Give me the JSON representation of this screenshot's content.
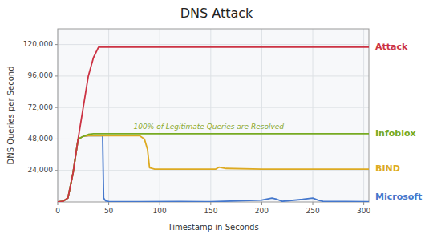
{
  "chart_data": {
    "type": "line",
    "title": "DNS Attack",
    "xlabel": "Timestamp in Seconds",
    "ylabel": "DNS Queries per Second",
    "xlim": [
      0,
      305
    ],
    "ylim": [
      0,
      132000
    ],
    "xticks": [
      0,
      50,
      100,
      150,
      200,
      250,
      300
    ],
    "yticks": [
      {
        "value": 24000,
        "label": "24,000"
      },
      {
        "value": 48000,
        "label": "48,000"
      },
      {
        "value": 72000,
        "label": "72,000"
      },
      {
        "value": 96000,
        "label": "96,000"
      },
      {
        "value": 120000,
        "label": "120,000"
      }
    ],
    "grid": true,
    "legend": "right",
    "annotations": [
      {
        "text": "100% of Legitimate Queries are Resolved",
        "x": 148,
        "y": 54500,
        "color": "#8aaa33"
      }
    ],
    "series": [
      {
        "name": "Microsoft",
        "color": "#4477cc",
        "x": [
          0,
          5,
          10,
          15,
          20,
          25,
          30,
          40,
          44,
          45,
          47,
          50,
          80,
          120,
          150,
          200,
          210,
          215,
          220,
          240,
          250,
          255,
          260,
          305
        ],
        "values": [
          0,
          500,
          3000,
          22000,
          48000,
          50000,
          50500,
          50500,
          50500,
          3000,
          800,
          400,
          200,
          300,
          200,
          1500,
          3000,
          2000,
          500,
          2000,
          3000,
          1500,
          500,
          200
        ]
      },
      {
        "name": "BIND",
        "color": "#ddaa22",
        "x": [
          0,
          5,
          10,
          15,
          20,
          25,
          30,
          40,
          80,
          85,
          88,
          90,
          95,
          155,
          158,
          165,
          200,
          305
        ],
        "values": [
          0,
          500,
          3000,
          22000,
          48000,
          50000,
          50500,
          50500,
          50500,
          48000,
          40000,
          26000,
          25000,
          25000,
          26500,
          25500,
          25000,
          25000
        ]
      },
      {
        "name": "Infoblox",
        "color": "#77aa22",
        "x": [
          0,
          5,
          10,
          15,
          20,
          25,
          30,
          35,
          305
        ],
        "values": [
          0,
          500,
          3000,
          22000,
          48000,
          50000,
          51500,
          52000,
          52000
        ]
      },
      {
        "name": "Attack",
        "color": "#cc3344",
        "x": [
          0,
          5,
          10,
          15,
          20,
          25,
          30,
          35,
          40,
          42,
          305
        ],
        "values": [
          0,
          500,
          3000,
          22000,
          48000,
          72000,
          96000,
          110000,
          118000,
          118000,
          118000
        ]
      }
    ]
  }
}
